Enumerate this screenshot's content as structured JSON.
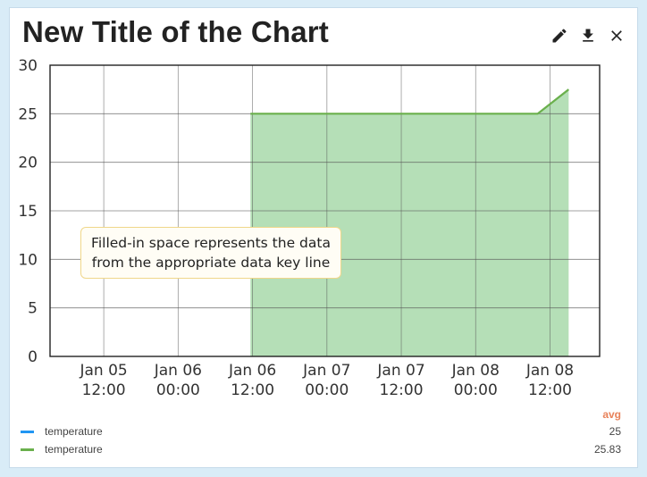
{
  "header": {
    "title": "New Title of the Chart",
    "icons": [
      "pencil-icon",
      "download-icon",
      "close-icon"
    ]
  },
  "tooltip": {
    "line1": "Filled-in space represents the data",
    "line2": "from the appropriate data key line"
  },
  "legend": {
    "column_header": "avg",
    "items": [
      {
        "name": "temperature",
        "color": "#2196f3",
        "avg": "25"
      },
      {
        "name": "temperature",
        "color": "#6ab04c",
        "avg": "25.83"
      }
    ]
  },
  "chart_data": {
    "type": "area",
    "title": "New Title of the Chart",
    "ylim": [
      0,
      30
    ],
    "yticks": [
      0,
      5,
      10,
      15,
      20,
      25,
      30
    ],
    "xlim": [
      "2024-01-05T03:20",
      "2024-01-08T20:00"
    ],
    "xticks": [
      {
        "x": "2024-01-05T12:00",
        "label_top": "Jan 05",
        "label_bottom": "12:00"
      },
      {
        "x": "2024-01-06T00:00",
        "label_top": "Jan 06",
        "label_bottom": "00:00"
      },
      {
        "x": "2024-01-06T12:00",
        "label_top": "Jan 06",
        "label_bottom": "12:00"
      },
      {
        "x": "2024-01-07T00:00",
        "label_top": "Jan 07",
        "label_bottom": "00:00"
      },
      {
        "x": "2024-01-07T12:00",
        "label_top": "Jan 07",
        "label_bottom": "12:00"
      },
      {
        "x": "2024-01-08T00:00",
        "label_top": "Jan 08",
        "label_bottom": "00:00"
      },
      {
        "x": "2024-01-08T12:00",
        "label_top": "Jan 08",
        "label_bottom": "12:00"
      }
    ],
    "grid": true,
    "legend": "bottom",
    "series": [
      {
        "name": "temperature",
        "color": "#6ab04c",
        "fill": "#b5dfb7",
        "points": [
          {
            "x": "2024-01-06T11:40",
            "y": 25
          },
          {
            "x": "2024-01-08T10:00",
            "y": 25
          },
          {
            "x": "2024-01-08T15:00",
            "y": 27.5
          }
        ]
      }
    ]
  }
}
